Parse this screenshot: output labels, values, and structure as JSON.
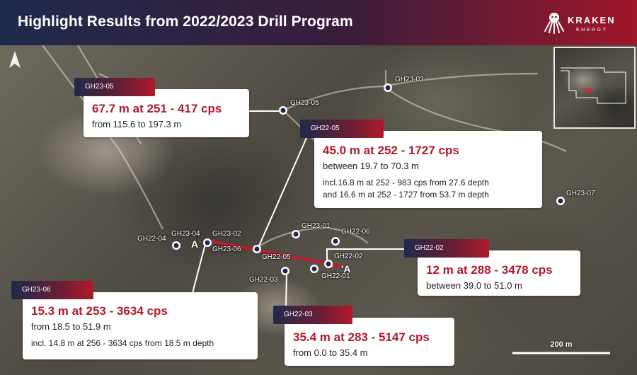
{
  "header": {
    "title": "Highlight Results from 2022/2023 Drill Program"
  },
  "logo": {
    "word": "KRAKEN",
    "sub": "ENERGY"
  },
  "callouts": [
    {
      "id": "GH23-05",
      "main": "67.7 m at 251 - 417  cps",
      "sub": "from 115.6 to 197.3 m",
      "incl": []
    },
    {
      "id": "GH22-05",
      "main": "45.0 m at 252 - 1727  cps",
      "sub": "between 19.7 to 70.3 m",
      "incl": [
        "incl.16.8 m at 252 - 983  cps from 27.6 depth",
        "and 16.6 m at 252 - 1727 from 53.7 m depth"
      ]
    },
    {
      "id": "GH22-02",
      "main": "12 m at 288 - 3478 cps",
      "sub": "between 39.0 to 51.0 m",
      "incl": []
    },
    {
      "id": "GH23-06",
      "main": "15.3 m at 253 - 3634  cps",
      "sub": "from 18.5 to 51.9 m",
      "incl": [
        "incl. 14.8 m at 256 - 3634 cps from 18.5 m depth"
      ]
    },
    {
      "id": "GH22-03",
      "main": "35.4 m at 283 - 5147 cps",
      "sub": "from 0.0 to 35.4 m",
      "incl": []
    }
  ],
  "holes": [
    {
      "label": "GH23-03"
    },
    {
      "label": "GH23-05"
    },
    {
      "label": "GH23-07"
    },
    {
      "label": "GH22-04"
    },
    {
      "label": "GH23-04"
    },
    {
      "label": "GH23-02"
    },
    {
      "label": "GH23-06"
    },
    {
      "label": "GH23-01"
    },
    {
      "label": "GH22-06"
    },
    {
      "label": "GH22-05"
    },
    {
      "label": "GH22-02"
    },
    {
      "label": "GH22-03"
    },
    {
      "label": "GH22-01"
    }
  ],
  "section": {
    "start": "A",
    "end": "'A"
  },
  "scale": {
    "label": "200 m"
  },
  "colors": {
    "accent": "#b11a2b",
    "navy": "#1f2a4a",
    "section_line": "#d0142a"
  }
}
